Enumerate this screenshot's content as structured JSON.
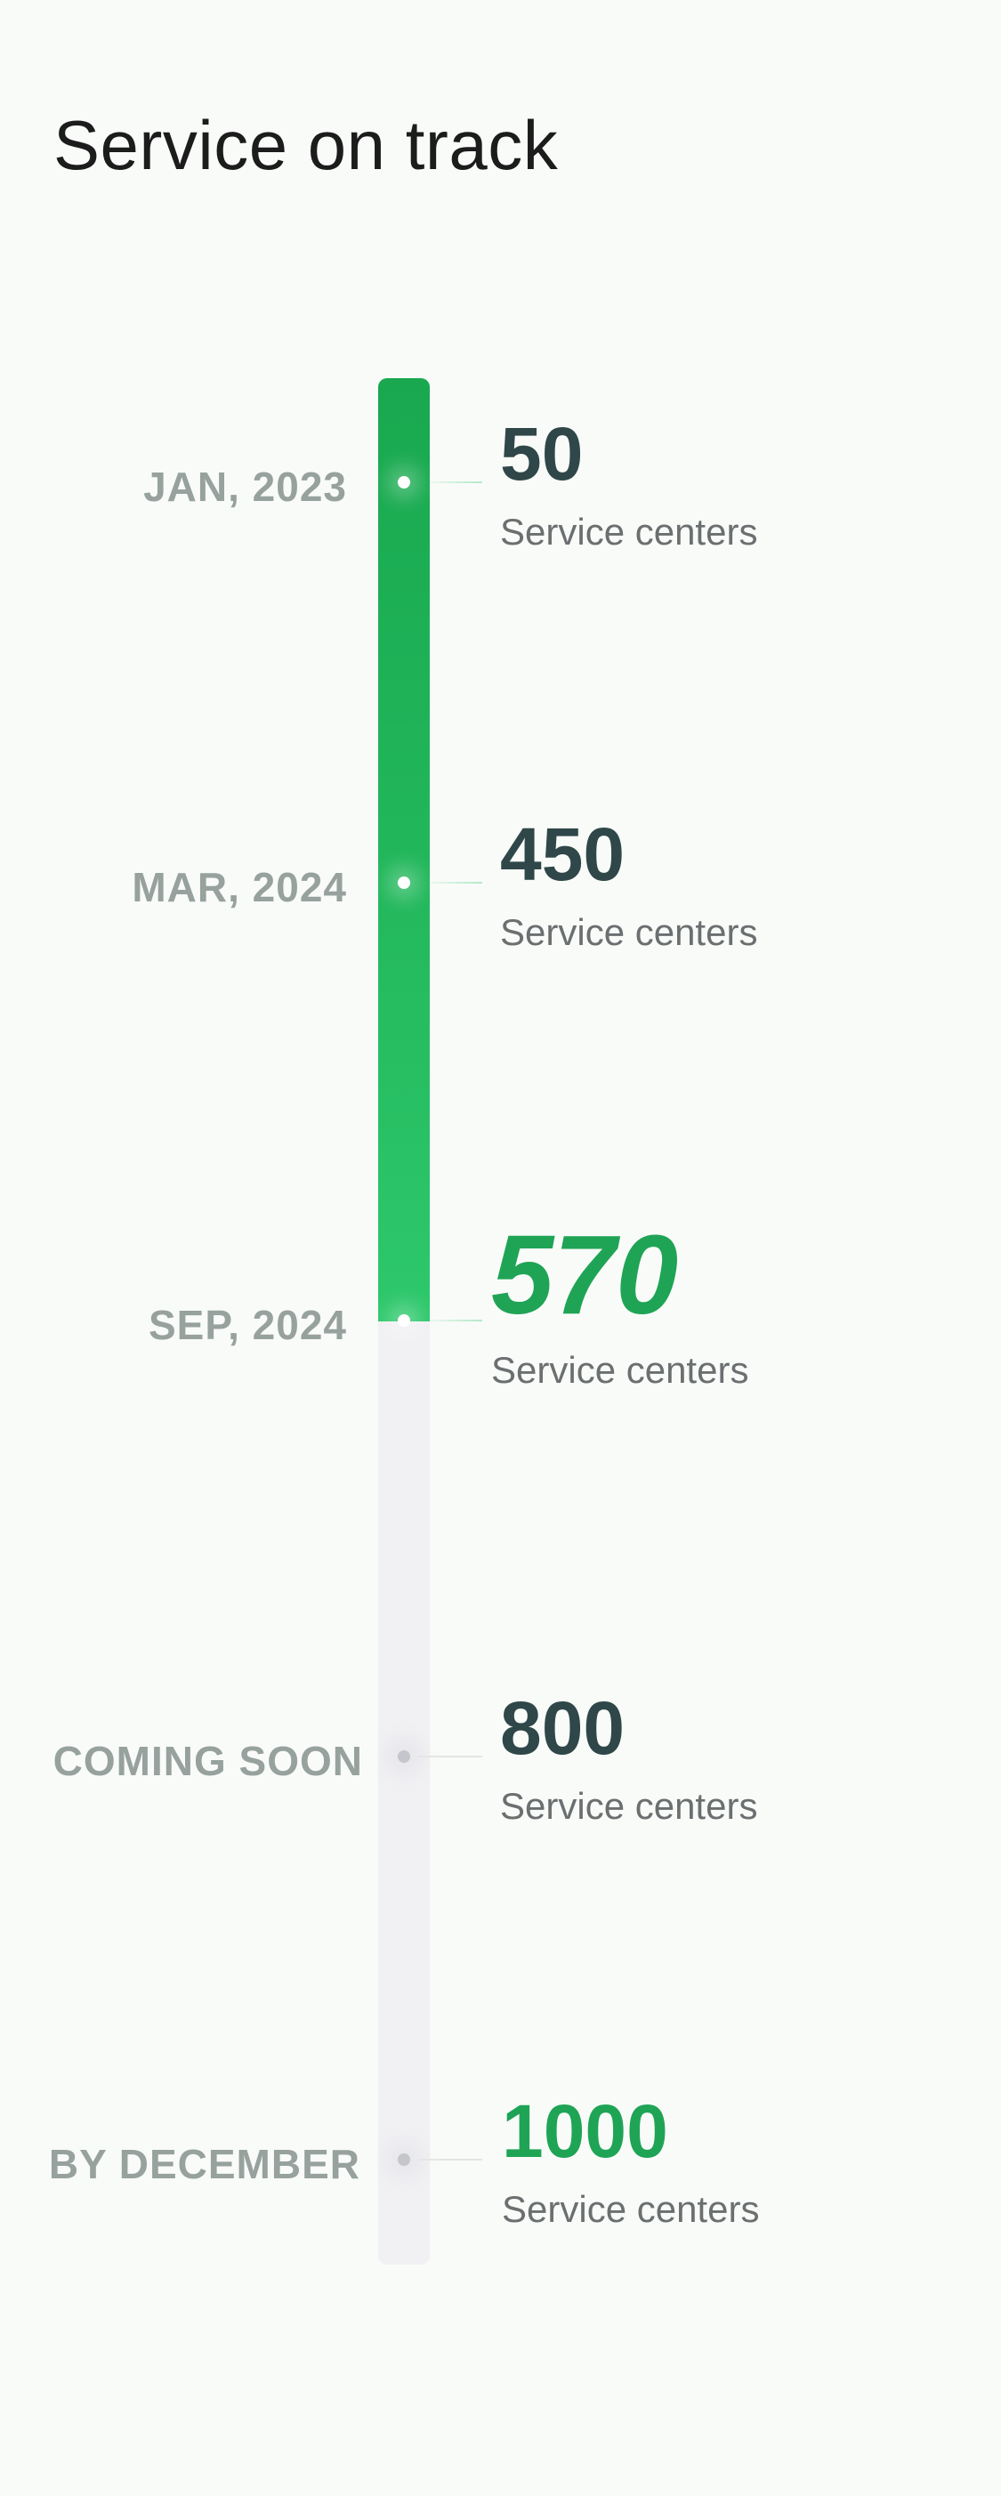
{
  "title": "Service on track",
  "milestones": [
    {
      "date": "JAN, 2023",
      "value": "50",
      "caption": "Service centers",
      "status": "completed"
    },
    {
      "date": "MAR, 2024",
      "value": "450",
      "caption": "Service centers",
      "status": "completed"
    },
    {
      "date": "SEP, 2024",
      "value": "570",
      "caption": "Service centers",
      "status": "current"
    },
    {
      "date": "COMING SOON",
      "value": "800",
      "caption": "Service centers",
      "status": "upcoming"
    },
    {
      "date": "BY DECEMBER",
      "value": "1000",
      "caption": "Service centers",
      "status": "goal"
    }
  ],
  "colors": {
    "background": "#f9fbf9",
    "progress_green": "#23b85c",
    "highlight_green": "#1fa455",
    "track_gray": "#f1f1f4",
    "value_dark": "#2f4748",
    "label_gray": "#97a19e"
  }
}
